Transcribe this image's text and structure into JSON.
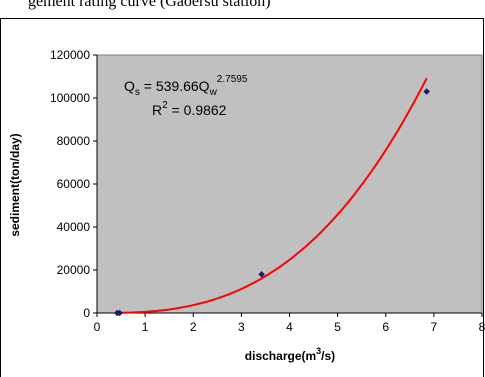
{
  "header": {
    "caption": "gement rating curve (Gaoersu station)"
  },
  "chart_data": {
    "type": "scatter",
    "xlabel_main": "discharge(m",
    "xlabel_sup": "3",
    "xlabel_tail": "/s)",
    "ylabel": "sediment(ton/day)",
    "xlim": [
      0,
      8
    ],
    "ylim": [
      0,
      120000
    ],
    "x_ticks": [
      "0",
      "1",
      "2",
      "3",
      "4",
      "5",
      "6",
      "7",
      "8"
    ],
    "y_ticks": [
      "0",
      "20000",
      "40000",
      "60000",
      "80000",
      "100000",
      "120000"
    ],
    "grid": false,
    "plot_background": "#c0c0c0",
    "points": [
      {
        "x": 0.42,
        "y": 0
      },
      {
        "x": 0.47,
        "y": 0
      },
      {
        "x": 3.42,
        "y": 18000
      },
      {
        "x": 6.85,
        "y": 103000
      }
    ],
    "point_color": "#1a1a5e",
    "trendline": {
      "type": "power",
      "coefficient": 539.66,
      "exponent": 2.7595,
      "x_range": [
        0.42,
        6.85
      ],
      "color": "#ff0000"
    },
    "annotations": {
      "eq_q": "Q",
      "eq_s": "s",
      "eq_mid": " = 539.66Q",
      "eq_w": "w",
      "eq_exp": "2.7595",
      "r2_r": "R",
      "r2_sup": "2",
      "r2_val": " = 0.9862"
    }
  }
}
